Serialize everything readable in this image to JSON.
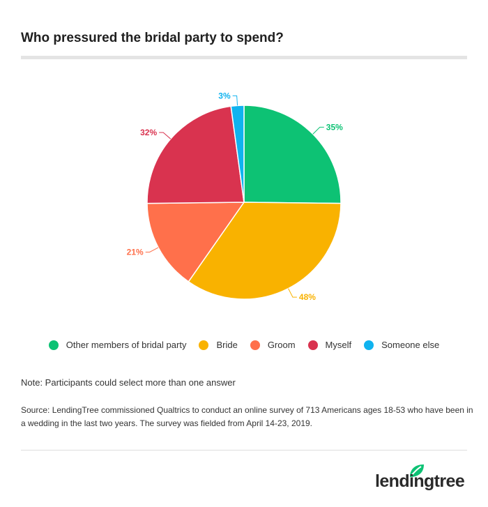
{
  "title": "Who pressured the bridal party to spend?",
  "chart_data": {
    "type": "pie",
    "title": "Who pressured the bridal party to spend?",
    "slices": [
      {
        "name": "Other members of bridal party",
        "label": "35%",
        "value": 35,
        "color": "#0dc274"
      },
      {
        "name": "Bride",
        "label": "48%",
        "value": 48,
        "color": "#f9b200"
      },
      {
        "name": "Groom",
        "label": "21%",
        "value": 21,
        "color": "#ff704b"
      },
      {
        "name": "Myself",
        "label": "32%",
        "value": 32,
        "color": "#d9334f"
      },
      {
        "name": "Someone else",
        "label": "3%",
        "value": 3,
        "color": "#10b3ef"
      }
    ],
    "legend_position": "bottom"
  },
  "note": "Note: Participants could select more than one answer",
  "source": "Source: LendingTree commissioned Qualtrics to conduct an online survey of 713 Americans ages 18-53 who have been in a wedding in the last two years. The survey was fielded from April 14-23, 2019.",
  "logo": {
    "text": "lendingtree",
    "leaf_color": "#0dc274"
  }
}
